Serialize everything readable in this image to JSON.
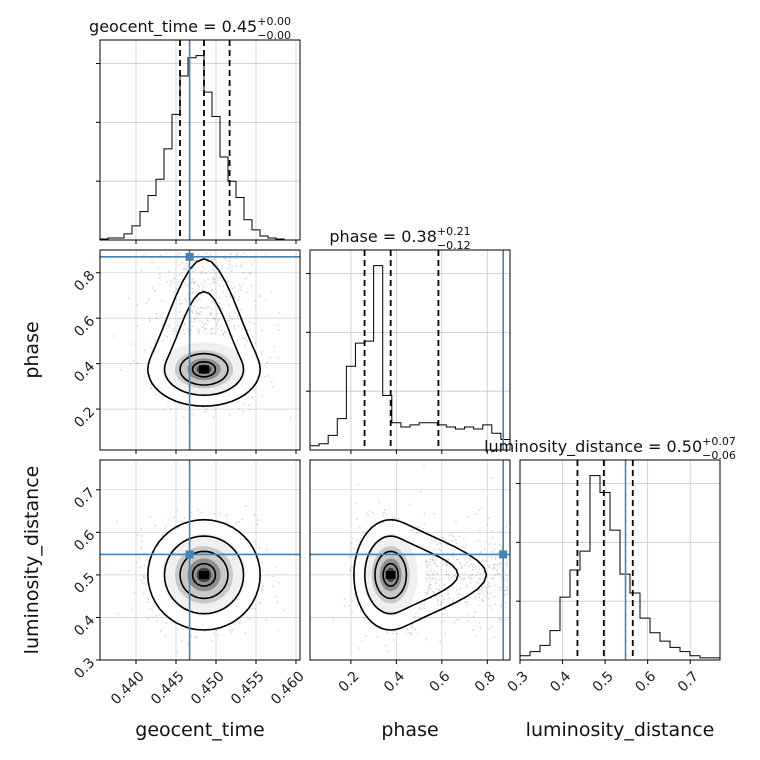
{
  "chart_data": {
    "type": "corner",
    "parameters": [
      "geocent_time",
      "phase",
      "luminosity_distance"
    ],
    "axis_labels": [
      "geocent_time",
      "phase",
      "luminosity_distance"
    ],
    "ranges": {
      "geocent_time": [
        0.4355,
        0.4605
      ],
      "phase": [
        0.02,
        0.9
      ],
      "luminosity_distance": [
        0.3,
        0.77
      ]
    },
    "ticks": {
      "geocent_time": [
        0.44,
        0.445,
        0.45,
        0.455,
        0.46
      ],
      "phase": [
        0.2,
        0.4,
        0.6,
        0.8
      ],
      "luminosity_distance": [
        0.3,
        0.4,
        0.5,
        0.6,
        0.7
      ]
    },
    "tick_labels": {
      "geocent_time": [
        "0.440",
        "0.445",
        "0.450",
        "0.455",
        "0.460"
      ],
      "phase": [
        "0.2",
        "0.4",
        "0.6",
        "0.8"
      ],
      "luminosity_distance": [
        "0.3",
        "0.4",
        "0.5",
        "0.6",
        "0.7"
      ]
    },
    "truths": {
      "geocent_time": 0.4467,
      "phase": 0.87,
      "luminosity_distance": 0.548
    },
    "truth_color": "#4682b4",
    "titles": [
      {
        "label": "geocent_time = 0.45",
        "sup": "+0.00",
        "sub": "−0.00"
      },
      {
        "label": "phase = 0.38",
        "sup": "+0.21",
        "sub": "−0.12"
      },
      {
        "label": "luminosity_distance = 0.50",
        "sup": "+0.07",
        "sub": "−0.06"
      }
    ],
    "quantiles": {
      "geocent_time": [
        0.4455,
        0.4485,
        0.4517
      ],
      "phase": [
        0.26,
        0.375,
        0.585
      ],
      "luminosity_distance": [
        0.435,
        0.497,
        0.565
      ]
    },
    "histograms": {
      "geocent_time": {
        "edges": [
          0.4355,
          0.4605
        ],
        "counts": [
          0.5,
          1,
          1,
          3,
          7,
          14,
          22,
          30,
          45,
          62,
          81,
          90,
          91,
          73,
          61,
          41,
          29,
          21,
          10,
          5,
          2,
          1,
          0.5,
          0,
          0
        ]
      },
      "phase": {
        "edges": [
          0.02,
          0.9
        ],
        "counts": [
          2,
          3,
          7,
          15,
          40,
          51,
          52,
          88,
          26,
          13,
          11,
          12,
          13,
          13,
          12,
          11,
          10,
          11,
          10,
          12,
          8,
          5
        ]
      },
      "luminosity_distance": {
        "edges": [
          0.3,
          0.77
        ],
        "counts": [
          2,
          4,
          7,
          14,
          30,
          43,
          52,
          88,
          80,
          62,
          41,
          32,
          20,
          13,
          9,
          6,
          4,
          2,
          1,
          1
        ]
      }
    },
    "grid": true
  }
}
